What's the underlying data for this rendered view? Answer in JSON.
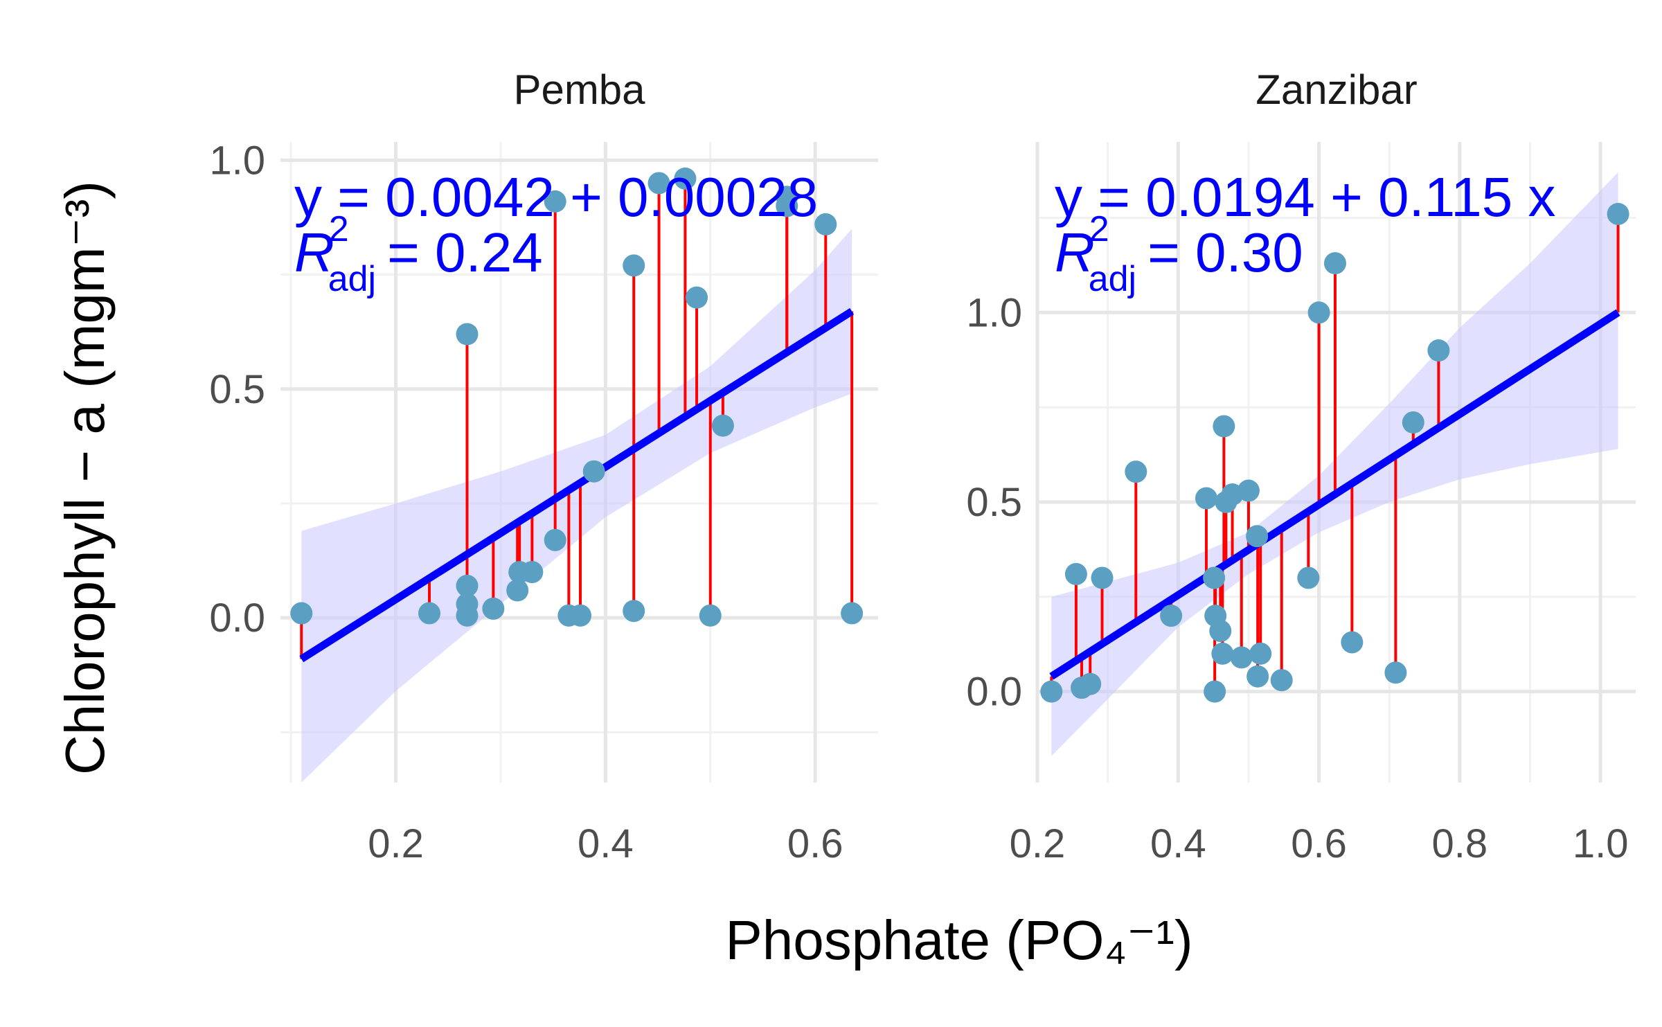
{
  "colors": {
    "point": "#5b9fc2",
    "fit_line": "#0000ff",
    "residual": "#ff0000",
    "ribbon": "#c8c8ff",
    "grid_major": "#e6e6e6",
    "grid_minor": "#f1f1f1"
  },
  "axes": {
    "xlabel": "Phosphate (PO₄⁻¹)",
    "ylabel": "Chlorophyll − a (mgm⁻³)"
  },
  "chart_data": [
    {
      "type": "scatter",
      "panel": "Pemba",
      "xlim": [
        0.09,
        0.66
      ],
      "ylim": [
        -0.36,
        1.04
      ],
      "xticks": [
        0.2,
        0.4,
        0.6
      ],
      "xtick_labels": [
        "0.2",
        "0.4",
        "0.6"
      ],
      "yticks": [
        0.0,
        0.5,
        1.0
      ],
      "ytick_labels": [
        "0.0",
        "0.5",
        "1.0"
      ],
      "fit": {
        "x": [
          0.11,
          0.635
        ],
        "y": [
          -0.09,
          0.67
        ]
      },
      "ribbon": {
        "x": [
          0.11,
          0.2,
          0.3,
          0.4,
          0.5,
          0.6,
          0.635
        ],
        "lower": [
          -0.36,
          -0.16,
          0.03,
          0.22,
          0.36,
          0.46,
          0.49
        ],
        "upper": [
          0.19,
          0.25,
          0.32,
          0.4,
          0.55,
          0.76,
          0.85
        ]
      },
      "points": [
        {
          "x": 0.11,
          "y": 0.01
        },
        {
          "x": 0.232,
          "y": 0.01
        },
        {
          "x": 0.268,
          "y": 0.62
        },
        {
          "x": 0.268,
          "y": 0.07
        },
        {
          "x": 0.268,
          "y": 0.03
        },
        {
          "x": 0.268,
          "y": 0.005
        },
        {
          "x": 0.293,
          "y": 0.02
        },
        {
          "x": 0.316,
          "y": 0.06
        },
        {
          "x": 0.318,
          "y": 0.1
        },
        {
          "x": 0.33,
          "y": 0.1
        },
        {
          "x": 0.352,
          "y": 0.91
        },
        {
          "x": 0.352,
          "y": 0.17
        },
        {
          "x": 0.365,
          "y": 0.005
        },
        {
          "x": 0.376,
          "y": 0.005
        },
        {
          "x": 0.389,
          "y": 0.32
        },
        {
          "x": 0.427,
          "y": 0.77
        },
        {
          "x": 0.427,
          "y": 0.015
        },
        {
          "x": 0.451,
          "y": 0.95
        },
        {
          "x": 0.476,
          "y": 0.96
        },
        {
          "x": 0.487,
          "y": 0.7
        },
        {
          "x": 0.5,
          "y": 0.005
        },
        {
          "x": 0.512,
          "y": 0.42
        },
        {
          "x": 0.573,
          "y": 0.92
        },
        {
          "x": 0.573,
          "y": 0.9
        },
        {
          "x": 0.61,
          "y": 0.86
        },
        {
          "x": 0.635,
          "y": 0.01
        }
      ],
      "equation": {
        "line1": "y = 0.0042 + 0.00028",
        "r2_label": "R",
        "r2_sup": "2",
        "r2_sub": "adj",
        "r2_value": "= 0.24"
      }
    },
    {
      "type": "scatter",
      "panel": "Zanzibar",
      "xlim": [
        0.2,
        1.05
      ],
      "ylim": [
        -0.24,
        1.45
      ],
      "xticks": [
        0.2,
        0.4,
        0.6,
        0.8,
        1.0
      ],
      "xtick_labels": [
        "0.2",
        "0.4",
        "0.6",
        "0.8",
        "1.0"
      ],
      "yticks": [
        0.0,
        0.5,
        1.0
      ],
      "ytick_labels": [
        "0.0",
        "0.5",
        "1.0"
      ],
      "fit": {
        "x": [
          0.22,
          1.025
        ],
        "y": [
          0.04,
          1.0
        ]
      },
      "ribbon": {
        "x": [
          0.22,
          0.3,
          0.4,
          0.5,
          0.6,
          0.7,
          0.8,
          0.9,
          1.025
        ],
        "lower": [
          -0.17,
          -0.02,
          0.17,
          0.31,
          0.42,
          0.5,
          0.56,
          0.6,
          0.64
        ],
        "upper": [
          0.25,
          0.29,
          0.34,
          0.42,
          0.57,
          0.76,
          0.96,
          1.13,
          1.37
        ]
      },
      "points": [
        {
          "x": 0.22,
          "y": 0.0
        },
        {
          "x": 0.255,
          "y": 0.31
        },
        {
          "x": 0.263,
          "y": 0.01
        },
        {
          "x": 0.275,
          "y": 0.02
        },
        {
          "x": 0.292,
          "y": 0.3
        },
        {
          "x": 0.34,
          "y": 0.58
        },
        {
          "x": 0.39,
          "y": 0.2
        },
        {
          "x": 0.44,
          "y": 0.51
        },
        {
          "x": 0.451,
          "y": 0.3
        },
        {
          "x": 0.452,
          "y": 0.0
        },
        {
          "x": 0.453,
          "y": 0.2
        },
        {
          "x": 0.46,
          "y": 0.16
        },
        {
          "x": 0.463,
          "y": 0.1
        },
        {
          "x": 0.465,
          "y": 0.7
        },
        {
          "x": 0.468,
          "y": 0.5
        },
        {
          "x": 0.477,
          "y": 0.52
        },
        {
          "x": 0.49,
          "y": 0.09
        },
        {
          "x": 0.5,
          "y": 0.53
        },
        {
          "x": 0.512,
          "y": 0.41
        },
        {
          "x": 0.513,
          "y": 0.04
        },
        {
          "x": 0.517,
          "y": 0.1
        },
        {
          "x": 0.547,
          "y": 0.03
        },
        {
          "x": 0.585,
          "y": 0.3
        },
        {
          "x": 0.6,
          "y": 1.0
        },
        {
          "x": 0.623,
          "y": 1.13
        },
        {
          "x": 0.647,
          "y": 0.13
        },
        {
          "x": 0.709,
          "y": 0.05
        },
        {
          "x": 0.734,
          "y": 0.71
        },
        {
          "x": 0.77,
          "y": 0.9
        },
        {
          "x": 1.025,
          "y": 1.26
        }
      ],
      "equation": {
        "line1": "y = 0.0194 + 0.115 x",
        "r2_label": "R",
        "r2_sup": "2",
        "r2_sub": "adj",
        "r2_value": "= 0.30"
      }
    }
  ]
}
